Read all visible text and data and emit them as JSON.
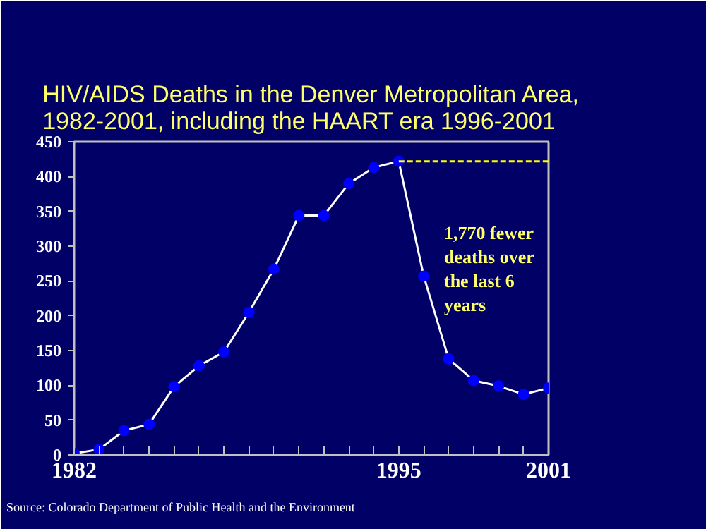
{
  "chart_data": {
    "type": "line",
    "title": "HIV/AIDS Deaths in the Denver Metropolitan Area, 1982-2001, including the HAART era 1996-2001",
    "x": [
      1982,
      1983,
      1984,
      1985,
      1986,
      1987,
      1988,
      1989,
      1990,
      1991,
      1992,
      1993,
      1994,
      1995,
      1996,
      1997,
      1998,
      1999,
      2000,
      2001
    ],
    "series": [
      {
        "color": "#ffffff",
        "marker": "circle",
        "line_style": "solid",
        "values": [
          2,
          8,
          35,
          44,
          98,
          128,
          148,
          205,
          267,
          344,
          344,
          390,
          413,
          422,
          257,
          138,
          107,
          99,
          87,
          96
        ]
      },
      {
        "type": "line",
        "color": "#ffff00",
        "marker": "none",
        "line_style": "dashed",
        "x": [
          1995,
          2001
        ],
        "values": [
          422,
          422
        ]
      }
    ],
    "xlim": [
      1982,
      2001
    ],
    "xticks": [
      1982,
      {
        "value": 1983,
        "label": null
      },
      {
        "value": 1984,
        "label": null
      },
      {
        "value": 1985,
        "label": null
      },
      {
        "value": 1986,
        "label": null
      },
      {
        "value": 1987,
        "label": null
      },
      {
        "value": 1988,
        "label": null
      },
      {
        "value": 1989,
        "label": null
      },
      {
        "value": 1990,
        "label": null
      },
      {
        "value": 1991,
        "label": null
      },
      {
        "value": 1992,
        "label": null
      },
      {
        "value": 1993,
        "label": null
      },
      {
        "value": 1994,
        "label": null
      },
      1995,
      {
        "value": 1996,
        "label": null
      },
      {
        "value": 1997,
        "label": null
      },
      {
        "value": 1998,
        "label": null
      },
      {
        "value": 1999,
        "label": null
      },
      {
        "value": 2000,
        "label": null
      },
      2001
    ],
    "ylim": [
      0,
      450
    ],
    "yticks": [
      0,
      50,
      100,
      150,
      200,
      250,
      300,
      350,
      400,
      450
    ],
    "grid": false,
    "annotations": [
      "1,770 fewer deaths over the last 6 years",
      "Source: Colorado Department of Public Health and the Environment"
    ]
  }
}
